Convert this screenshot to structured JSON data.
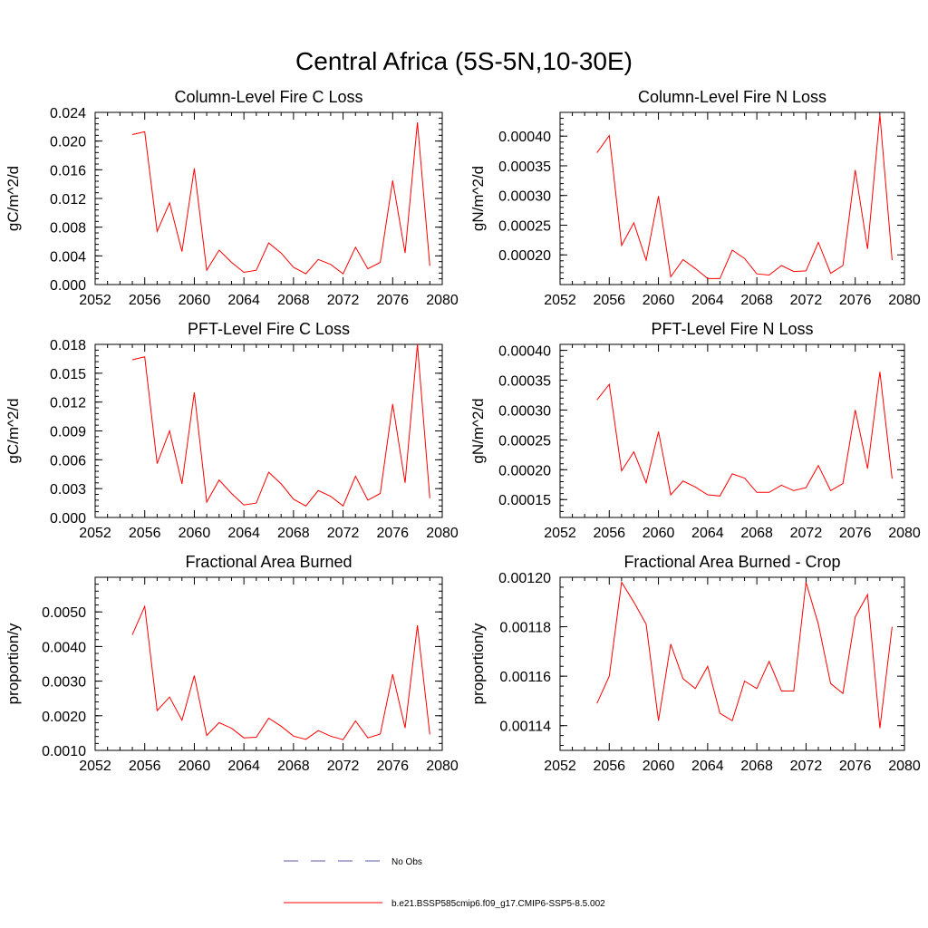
{
  "figure": {
    "title": "Central Africa (5S-5N,10-30E)"
  },
  "chart_data": [
    {
      "type": "line",
      "title": "Column-Level Fire C Loss",
      "xlabel": "",
      "ylabel": "gC/m^2/d",
      "xlim": [
        2052,
        2080
      ],
      "ylim": [
        0,
        0.024
      ],
      "xticks": [
        2052,
        2056,
        2060,
        2064,
        2068,
        2072,
        2076,
        2080
      ],
      "yticks": [
        0.0,
        0.004,
        0.008,
        0.012,
        0.016,
        0.02,
        0.024
      ],
      "ytick_labels": [
        "0.000",
        "0.004",
        "0.008",
        "0.012",
        "0.016",
        "0.020",
        "0.024"
      ],
      "x": [
        2055,
        2056,
        2057,
        2058,
        2059,
        2060,
        2061,
        2062,
        2063,
        2064,
        2065,
        2066,
        2067,
        2068,
        2069,
        2070,
        2071,
        2072,
        2073,
        2074,
        2075,
        2076,
        2077,
        2078,
        2079
      ],
      "series": [
        {
          "name": "b.e21.BSSP585cmip6.f09_g17.CMIP6-SSP5-8.5.002",
          "color": "#ff0000",
          "values": [
            0.0209,
            0.0213,
            0.0074,
            0.0114,
            0.0046,
            0.0162,
            0.002,
            0.0048,
            0.0031,
            0.0017,
            0.002,
            0.0058,
            0.0044,
            0.0024,
            0.0015,
            0.0035,
            0.0028,
            0.0015,
            0.0052,
            0.0022,
            0.0031,
            0.0145,
            0.0044,
            0.0226,
            0.0026
          ]
        }
      ]
    },
    {
      "type": "line",
      "title": "Column-Level Fire N Loss",
      "xlabel": "",
      "ylabel": "gN/m^2/d",
      "xlim": [
        2052,
        2080
      ],
      "ylim": [
        0.00015,
        0.00044
      ],
      "xticks": [
        2052,
        2056,
        2060,
        2064,
        2068,
        2072,
        2076,
        2080
      ],
      "yticks": [
        0.0002,
        0.00025,
        0.0003,
        0.00035,
        0.0004
      ],
      "ytick_labels": [
        "0.00020",
        "0.00025",
        "0.00030",
        "0.00035",
        "0.00040"
      ],
      "x": [
        2055,
        2056,
        2057,
        2058,
        2059,
        2060,
        2061,
        2062,
        2063,
        2064,
        2065,
        2066,
        2067,
        2068,
        2069,
        2070,
        2071,
        2072,
        2073,
        2074,
        2075,
        2076,
        2077,
        2078,
        2079
      ],
      "series": [
        {
          "name": "b.e21.BSSP585cmip6.f09_g17.CMIP6-SSP5-8.5.002",
          "color": "#ff0000",
          "values": [
            0.000372,
            0.000401,
            0.000216,
            0.000254,
            0.000191,
            0.000299,
            0.000163,
            0.000192,
            0.000177,
            0.00016,
            0.00016,
            0.000208,
            0.000194,
            0.000168,
            0.000166,
            0.000182,
            0.000172,
            0.000173,
            0.000221,
            0.000169,
            0.000182,
            0.000343,
            0.00021,
            0.000436,
            0.000191
          ]
        }
      ]
    },
    {
      "type": "line",
      "title": "PFT-Level Fire C Loss",
      "xlabel": "",
      "ylabel": "gC/m^2/d",
      "xlim": [
        2052,
        2080
      ],
      "ylim": [
        0,
        0.018
      ],
      "xticks": [
        2052,
        2056,
        2060,
        2064,
        2068,
        2072,
        2076,
        2080
      ],
      "yticks": [
        0.0,
        0.003,
        0.006,
        0.009,
        0.012,
        0.015,
        0.018
      ],
      "ytick_labels": [
        "0.000",
        "0.003",
        "0.006",
        "0.009",
        "0.012",
        "0.015",
        "0.018"
      ],
      "x": [
        2055,
        2056,
        2057,
        2058,
        2059,
        2060,
        2061,
        2062,
        2063,
        2064,
        2065,
        2066,
        2067,
        2068,
        2069,
        2070,
        2071,
        2072,
        2073,
        2074,
        2075,
        2076,
        2077,
        2078,
        2079
      ],
      "series": [
        {
          "name": "b.e21.BSSP585cmip6.f09_g17.CMIP6-SSP5-8.5.002",
          "color": "#ff0000",
          "values": [
            0.0164,
            0.0167,
            0.0056,
            0.009,
            0.0035,
            0.013,
            0.0016,
            0.0039,
            0.0025,
            0.0013,
            0.0015,
            0.0047,
            0.0035,
            0.0019,
            0.0012,
            0.0028,
            0.0022,
            0.0012,
            0.0043,
            0.0018,
            0.0025,
            0.0118,
            0.0036,
            0.018,
            0.002
          ]
        }
      ]
    },
    {
      "type": "line",
      "title": "PFT-Level Fire N Loss",
      "xlabel": "",
      "ylabel": "gN/m^2/d",
      "xlim": [
        2052,
        2080
      ],
      "ylim": [
        0.00012,
        0.00041
      ],
      "xticks": [
        2052,
        2056,
        2060,
        2064,
        2068,
        2072,
        2076,
        2080
      ],
      "yticks": [
        0.00015,
        0.0002,
        0.00025,
        0.0003,
        0.00035,
        0.0004
      ],
      "ytick_labels": [
        "0.00015",
        "0.00020",
        "0.00025",
        "0.00030",
        "0.00035",
        "0.00040"
      ],
      "x": [
        2055,
        2056,
        2057,
        2058,
        2059,
        2060,
        2061,
        2062,
        2063,
        2064,
        2065,
        2066,
        2067,
        2068,
        2069,
        2070,
        2071,
        2072,
        2073,
        2074,
        2075,
        2076,
        2077,
        2078,
        2079
      ],
      "series": [
        {
          "name": "b.e21.BSSP585cmip6.f09_g17.CMIP6-SSP5-8.5.002",
          "color": "#ff0000",
          "values": [
            0.000317,
            0.000343,
            0.000198,
            0.00023,
            0.000178,
            0.000264,
            0.000158,
            0.000181,
            0.000171,
            0.000158,
            0.000156,
            0.000193,
            0.000186,
            0.000162,
            0.000162,
            0.000174,
            0.000165,
            0.00017,
            0.000207,
            0.000165,
            0.000177,
            0.0003,
            0.000202,
            0.000364,
            0.000185
          ]
        }
      ]
    },
    {
      "type": "line",
      "title": "Fractional Area Burned",
      "xlabel": "",
      "ylabel": "proportion/y",
      "xlim": [
        2052,
        2080
      ],
      "ylim": [
        0.001,
        0.006
      ],
      "xticks": [
        2052,
        2056,
        2060,
        2064,
        2068,
        2072,
        2076,
        2080
      ],
      "yticks": [
        0.001,
        0.002,
        0.003,
        0.004,
        0.005
      ],
      "ytick_labels": [
        "0.0010",
        "0.0020",
        "0.0030",
        "0.0040",
        "0.0050"
      ],
      "x": [
        2055,
        2056,
        2057,
        2058,
        2059,
        2060,
        2061,
        2062,
        2063,
        2064,
        2065,
        2066,
        2067,
        2068,
        2069,
        2070,
        2071,
        2072,
        2073,
        2074,
        2075,
        2076,
        2077,
        2078,
        2079
      ],
      "series": [
        {
          "name": "b.e21.BSSP585cmip6.f09_g17.CMIP6-SSP5-8.5.002",
          "color": "#ff0000",
          "values": [
            0.00434,
            0.00516,
            0.00215,
            0.00254,
            0.00187,
            0.00316,
            0.00143,
            0.0018,
            0.00164,
            0.00136,
            0.00138,
            0.00193,
            0.0017,
            0.00141,
            0.00132,
            0.00157,
            0.00141,
            0.00131,
            0.00185,
            0.00136,
            0.00147,
            0.0032,
            0.00165,
            0.00461,
            0.00146
          ]
        }
      ]
    },
    {
      "type": "line",
      "title": "Fractional Area Burned - Crop",
      "xlabel": "",
      "ylabel": "proportion/y",
      "xlim": [
        2052,
        2080
      ],
      "ylim": [
        0.00113,
        0.0012
      ],
      "xticks": [
        2052,
        2056,
        2060,
        2064,
        2068,
        2072,
        2076,
        2080
      ],
      "yticks": [
        0.00114,
        0.00116,
        0.00118,
        0.0012
      ],
      "ytick_labels": [
        "0.00114",
        "0.00116",
        "0.00118",
        "0.00120"
      ],
      "x": [
        2055,
        2056,
        2057,
        2058,
        2059,
        2060,
        2061,
        2062,
        2063,
        2064,
        2065,
        2066,
        2067,
        2068,
        2069,
        2070,
        2071,
        2072,
        2073,
        2074,
        2075,
        2076,
        2077,
        2078,
        2079
      ],
      "series": [
        {
          "name": "b.e21.BSSP585cmip6.f09_g17.CMIP6-SSP5-8.5.002",
          "color": "#ff0000",
          "values": [
            0.001149,
            0.00116,
            0.001198,
            0.00119,
            0.001181,
            0.001142,
            0.001173,
            0.001159,
            0.001155,
            0.001164,
            0.001145,
            0.001142,
            0.001158,
            0.001155,
            0.001166,
            0.001154,
            0.001154,
            0.001198,
            0.001181,
            0.001157,
            0.001153,
            0.001184,
            0.001193,
            0.001139,
            0.00118
          ]
        }
      ]
    }
  ],
  "legend": {
    "items": [
      {
        "label": "No Obs",
        "style": "dashed",
        "color": "#5a5aa8"
      },
      {
        "label": "b.e21.BSSP585cmip6.f09_g17.CMIP6-SSP5-8.5.002",
        "style": "solid",
        "color": "#ff0000"
      }
    ]
  }
}
